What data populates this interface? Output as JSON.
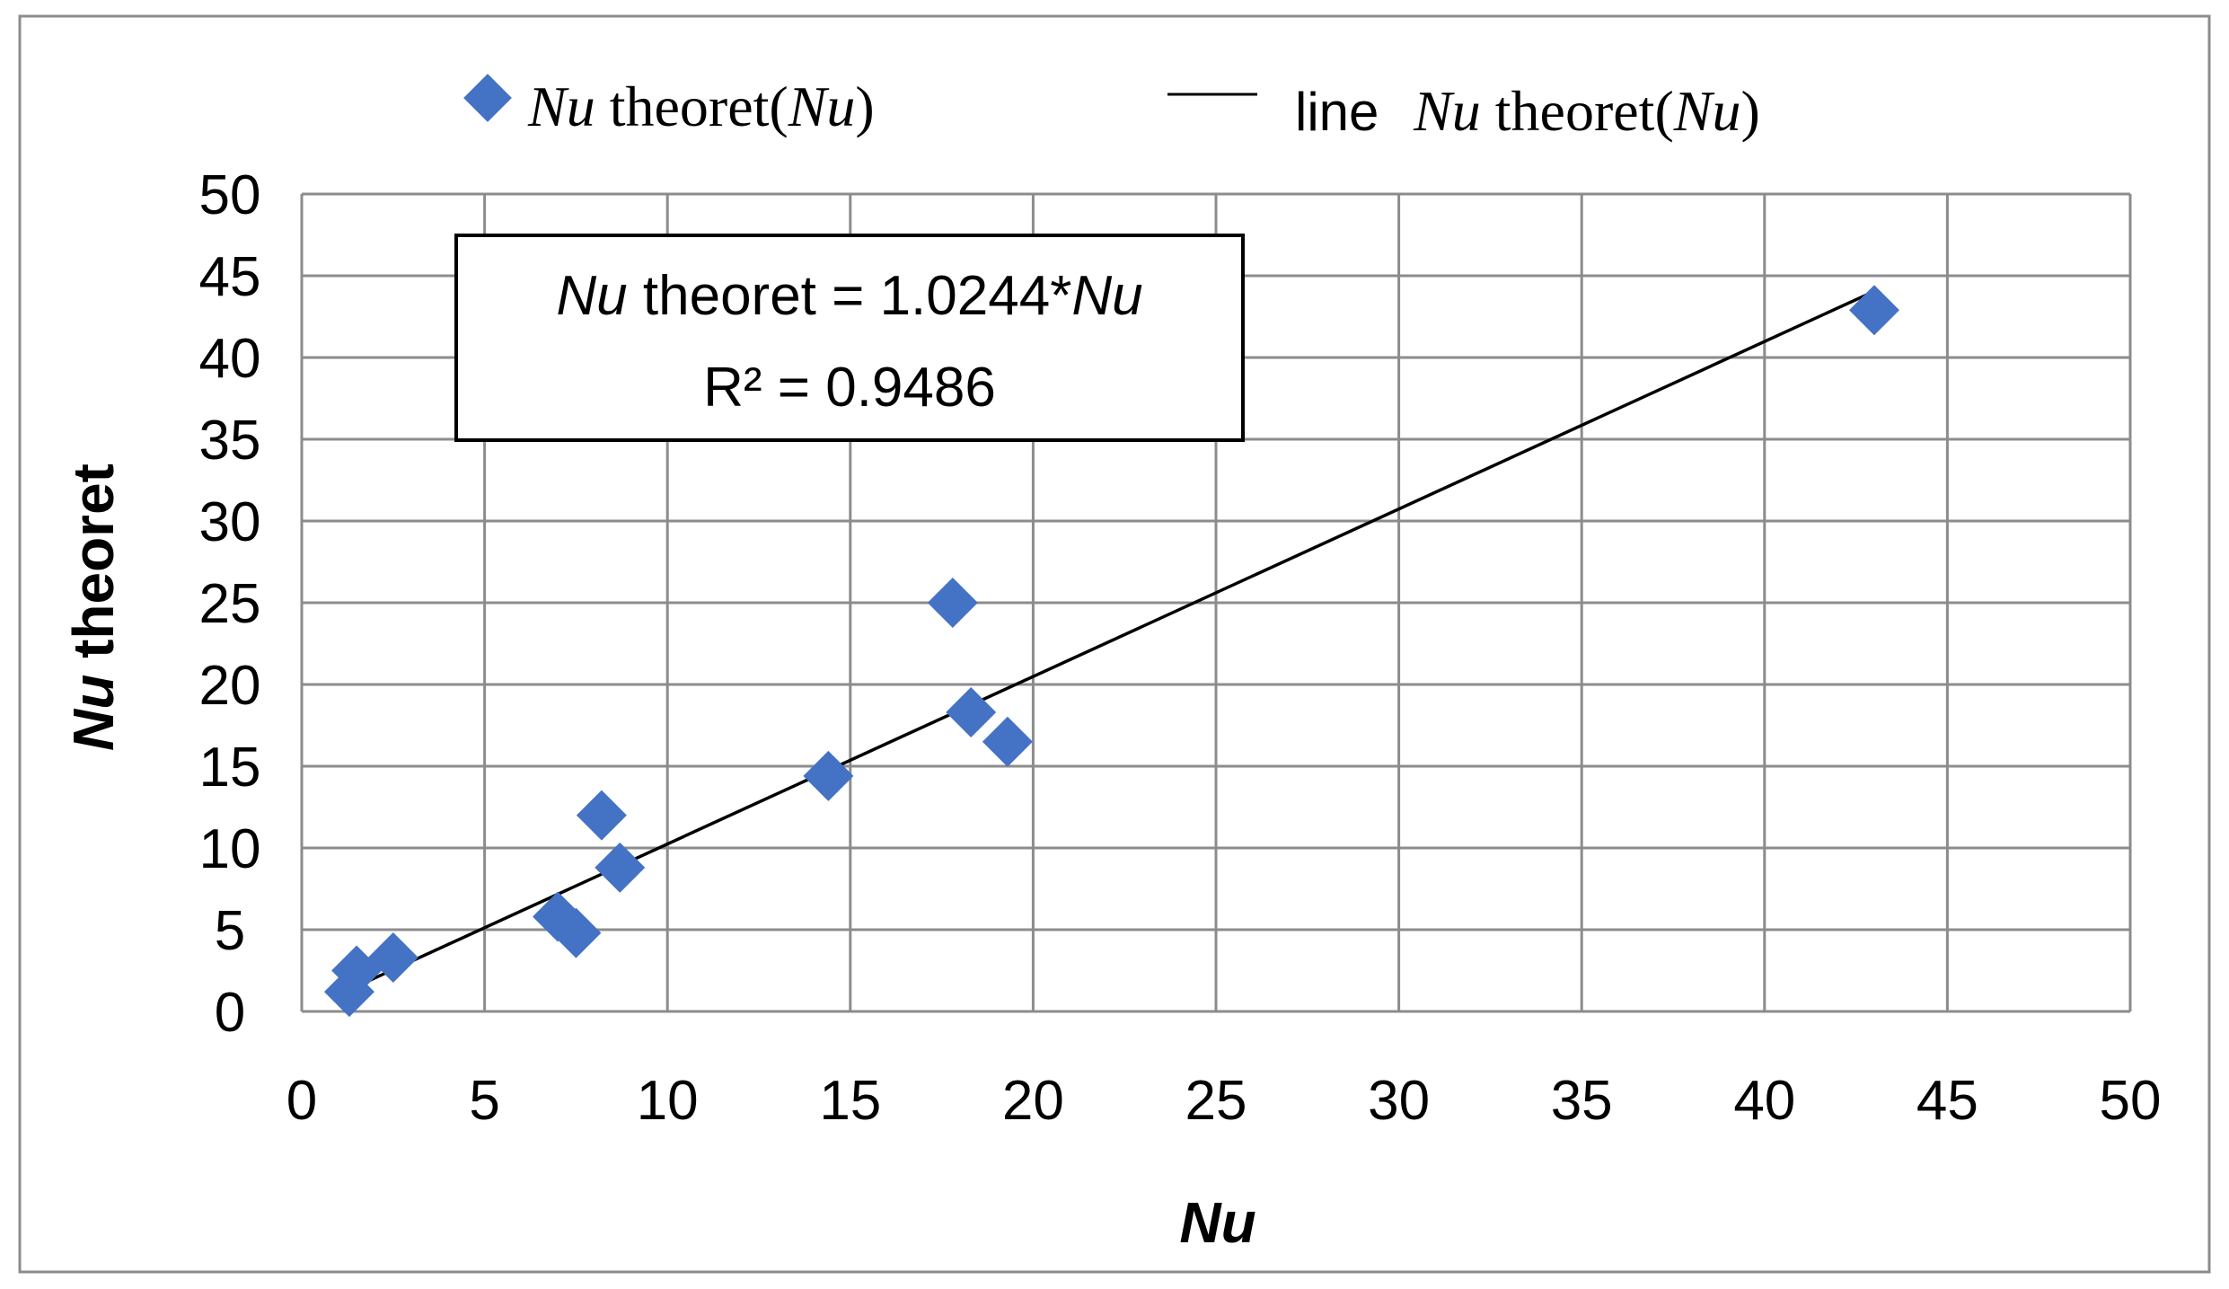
{
  "chart_data": {
    "type": "scatter",
    "xlabel": "Nu",
    "ylabel_italic": "Nu",
    "ylabel_rest": " theoret",
    "xlim": [
      0,
      50
    ],
    "ylim": [
      0,
      50
    ],
    "x_ticks": [
      "0",
      "5",
      "10",
      "15",
      "20",
      "25",
      "30",
      "35",
      "40",
      "45",
      "50"
    ],
    "y_ticks": [
      "0",
      "5",
      "10",
      "15",
      "20",
      "25",
      "30",
      "35",
      "40",
      "45",
      "50"
    ],
    "grid": true,
    "legend_placement": "top",
    "legend": {
      "series1_italic_a": "Nu",
      "series1_mid": " theoret(",
      "series1_italic_b": "Nu",
      "series1_end": ")",
      "series2_prefix": "line ",
      "series2_italic_a": "Nu",
      "series2_mid": " theoret(",
      "series2_italic_b": "Nu",
      "series2_end": ")"
    },
    "annotation": {
      "eq_italic_a": "Nu",
      "eq_mid": " theoret = 1.0244*",
      "eq_italic_b": "Nu",
      "r2": "R² = 0.9486"
    },
    "points": [
      {
        "x": 1.3,
        "y": 1.2
      },
      {
        "x": 1.5,
        "y": 2.5
      },
      {
        "x": 2.5,
        "y": 3.3
      },
      {
        "x": 7.0,
        "y": 5.8
      },
      {
        "x": 7.5,
        "y": 4.8
      },
      {
        "x": 8.2,
        "y": 12.0
      },
      {
        "x": 8.7,
        "y": 8.8
      },
      {
        "x": 14.4,
        "y": 14.4
      },
      {
        "x": 17.8,
        "y": 25.0
      },
      {
        "x": 18.3,
        "y": 18.3
      },
      {
        "x": 19.3,
        "y": 16.5
      },
      {
        "x": 43.0,
        "y": 42.9
      }
    ],
    "trendline": {
      "x": [
        1.3,
        43.0
      ],
      "y": [
        1.33,
        44.05
      ]
    },
    "colors": {
      "marker": "#4472C4",
      "line": "#000000",
      "grid": "#8c8c8c",
      "frame": "#8c8c8c"
    }
  }
}
